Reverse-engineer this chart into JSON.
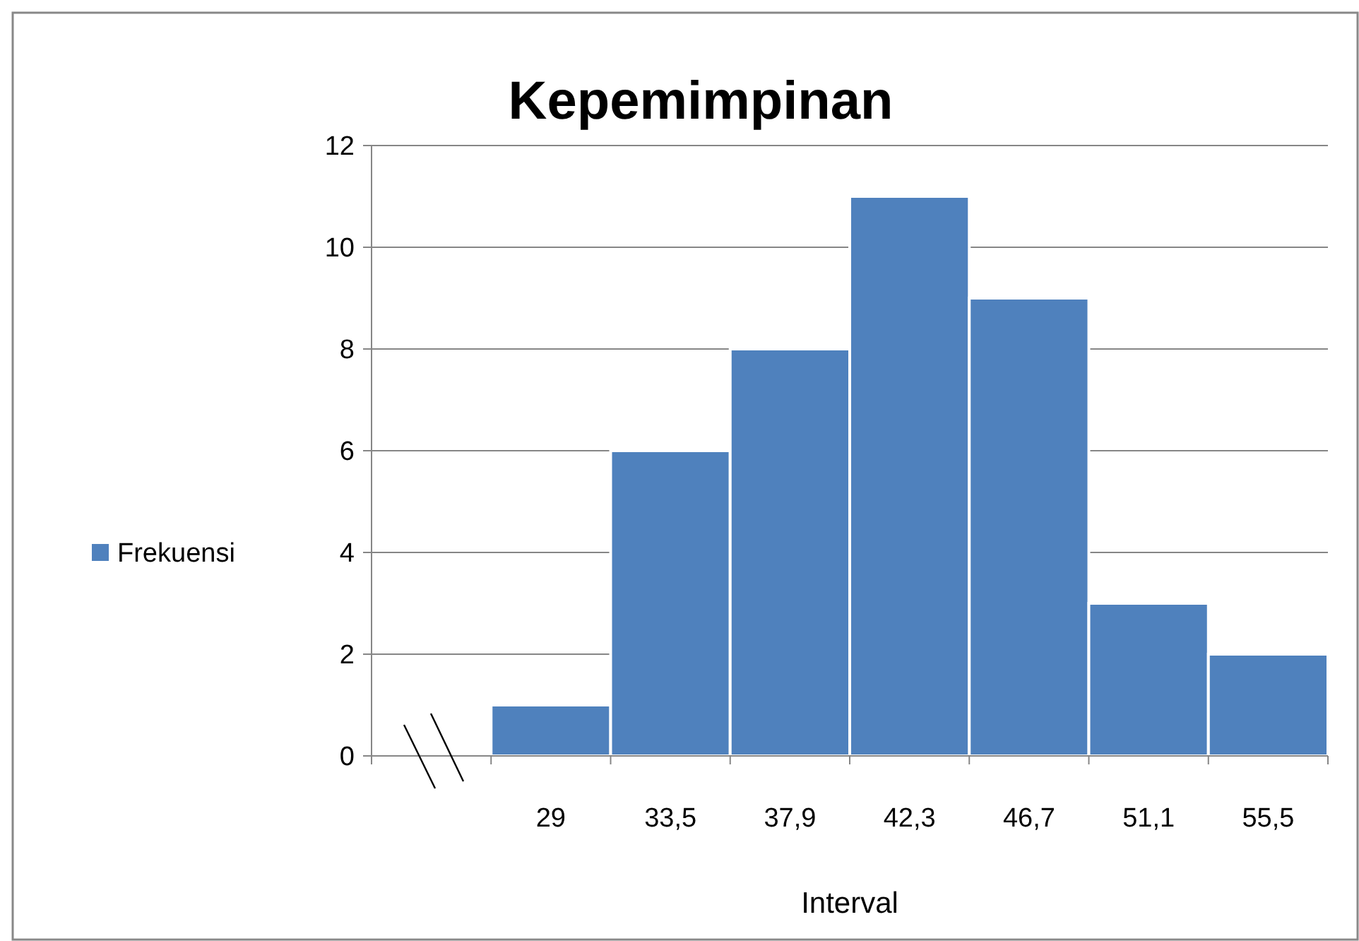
{
  "chart_data": {
    "type": "bar",
    "title": "Kepemimpinan",
    "xlabel": "Interval",
    "categories": [
      null,
      "29",
      "33,5",
      "37,9",
      "42,3",
      "46,7",
      "51,1",
      "55,5"
    ],
    "series": [
      {
        "name": "Frekuensi",
        "color": "#4f81bd",
        "values": [
          null,
          1,
          6,
          8,
          11,
          9,
          3,
          2
        ]
      }
    ],
    "ylim": [
      0,
      12
    ],
    "yticks": [
      0,
      2,
      4,
      6,
      8,
      10,
      12
    ],
    "grid": "y",
    "legend": "left"
  }
}
